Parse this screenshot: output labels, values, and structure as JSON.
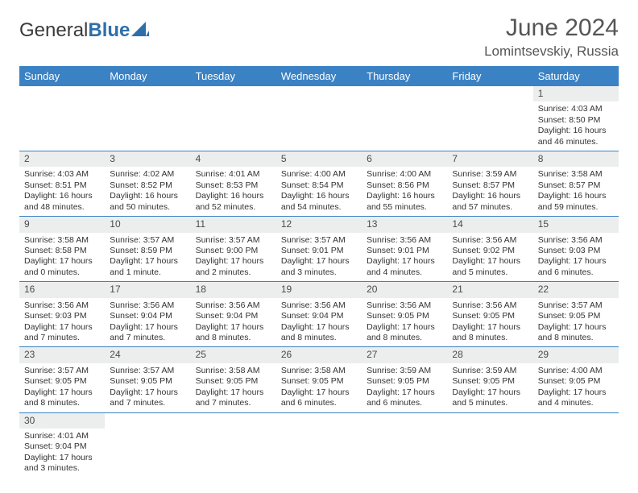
{
  "brand": {
    "part1": "General",
    "part2": "Blue"
  },
  "title": "June 2024",
  "location": "Lomintsevskiy, Russia",
  "weekdays": [
    "Sunday",
    "Monday",
    "Tuesday",
    "Wednesday",
    "Thursday",
    "Friday",
    "Saturday"
  ],
  "colors": {
    "header_bg": "#3b82c4",
    "header_text": "#ffffff",
    "daynum_bg": "#eceeee",
    "row_border": "#3b82c4",
    "logo_blue": "#2f6fa8",
    "text": "#333333"
  },
  "first_weekday_index": 6,
  "days": [
    {
      "n": 1,
      "sunrise": "4:03 AM",
      "sunset": "8:50 PM",
      "daylight": "16 hours and 46 minutes."
    },
    {
      "n": 2,
      "sunrise": "4:03 AM",
      "sunset": "8:51 PM",
      "daylight": "16 hours and 48 minutes."
    },
    {
      "n": 3,
      "sunrise": "4:02 AM",
      "sunset": "8:52 PM",
      "daylight": "16 hours and 50 minutes."
    },
    {
      "n": 4,
      "sunrise": "4:01 AM",
      "sunset": "8:53 PM",
      "daylight": "16 hours and 52 minutes."
    },
    {
      "n": 5,
      "sunrise": "4:00 AM",
      "sunset": "8:54 PM",
      "daylight": "16 hours and 54 minutes."
    },
    {
      "n": 6,
      "sunrise": "4:00 AM",
      "sunset": "8:56 PM",
      "daylight": "16 hours and 55 minutes."
    },
    {
      "n": 7,
      "sunrise": "3:59 AM",
      "sunset": "8:57 PM",
      "daylight": "16 hours and 57 minutes."
    },
    {
      "n": 8,
      "sunrise": "3:58 AM",
      "sunset": "8:57 PM",
      "daylight": "16 hours and 59 minutes."
    },
    {
      "n": 9,
      "sunrise": "3:58 AM",
      "sunset": "8:58 PM",
      "daylight": "17 hours and 0 minutes."
    },
    {
      "n": 10,
      "sunrise": "3:57 AM",
      "sunset": "8:59 PM",
      "daylight": "17 hours and 1 minute."
    },
    {
      "n": 11,
      "sunrise": "3:57 AM",
      "sunset": "9:00 PM",
      "daylight": "17 hours and 2 minutes."
    },
    {
      "n": 12,
      "sunrise": "3:57 AM",
      "sunset": "9:01 PM",
      "daylight": "17 hours and 3 minutes."
    },
    {
      "n": 13,
      "sunrise": "3:56 AM",
      "sunset": "9:01 PM",
      "daylight": "17 hours and 4 minutes."
    },
    {
      "n": 14,
      "sunrise": "3:56 AM",
      "sunset": "9:02 PM",
      "daylight": "17 hours and 5 minutes."
    },
    {
      "n": 15,
      "sunrise": "3:56 AM",
      "sunset": "9:03 PM",
      "daylight": "17 hours and 6 minutes."
    },
    {
      "n": 16,
      "sunrise": "3:56 AM",
      "sunset": "9:03 PM",
      "daylight": "17 hours and 7 minutes."
    },
    {
      "n": 17,
      "sunrise": "3:56 AM",
      "sunset": "9:04 PM",
      "daylight": "17 hours and 7 minutes."
    },
    {
      "n": 18,
      "sunrise": "3:56 AM",
      "sunset": "9:04 PM",
      "daylight": "17 hours and 8 minutes."
    },
    {
      "n": 19,
      "sunrise": "3:56 AM",
      "sunset": "9:04 PM",
      "daylight": "17 hours and 8 minutes."
    },
    {
      "n": 20,
      "sunrise": "3:56 AM",
      "sunset": "9:05 PM",
      "daylight": "17 hours and 8 minutes."
    },
    {
      "n": 21,
      "sunrise": "3:56 AM",
      "sunset": "9:05 PM",
      "daylight": "17 hours and 8 minutes."
    },
    {
      "n": 22,
      "sunrise": "3:57 AM",
      "sunset": "9:05 PM",
      "daylight": "17 hours and 8 minutes."
    },
    {
      "n": 23,
      "sunrise": "3:57 AM",
      "sunset": "9:05 PM",
      "daylight": "17 hours and 8 minutes."
    },
    {
      "n": 24,
      "sunrise": "3:57 AM",
      "sunset": "9:05 PM",
      "daylight": "17 hours and 7 minutes."
    },
    {
      "n": 25,
      "sunrise": "3:58 AM",
      "sunset": "9:05 PM",
      "daylight": "17 hours and 7 minutes."
    },
    {
      "n": 26,
      "sunrise": "3:58 AM",
      "sunset": "9:05 PM",
      "daylight": "17 hours and 6 minutes."
    },
    {
      "n": 27,
      "sunrise": "3:59 AM",
      "sunset": "9:05 PM",
      "daylight": "17 hours and 6 minutes."
    },
    {
      "n": 28,
      "sunrise": "3:59 AM",
      "sunset": "9:05 PM",
      "daylight": "17 hours and 5 minutes."
    },
    {
      "n": 29,
      "sunrise": "4:00 AM",
      "sunset": "9:05 PM",
      "daylight": "17 hours and 4 minutes."
    },
    {
      "n": 30,
      "sunrise": "4:01 AM",
      "sunset": "9:04 PM",
      "daylight": "17 hours and 3 minutes."
    }
  ],
  "labels": {
    "sunrise": "Sunrise:",
    "sunset": "Sunset:",
    "daylight": "Daylight:"
  }
}
